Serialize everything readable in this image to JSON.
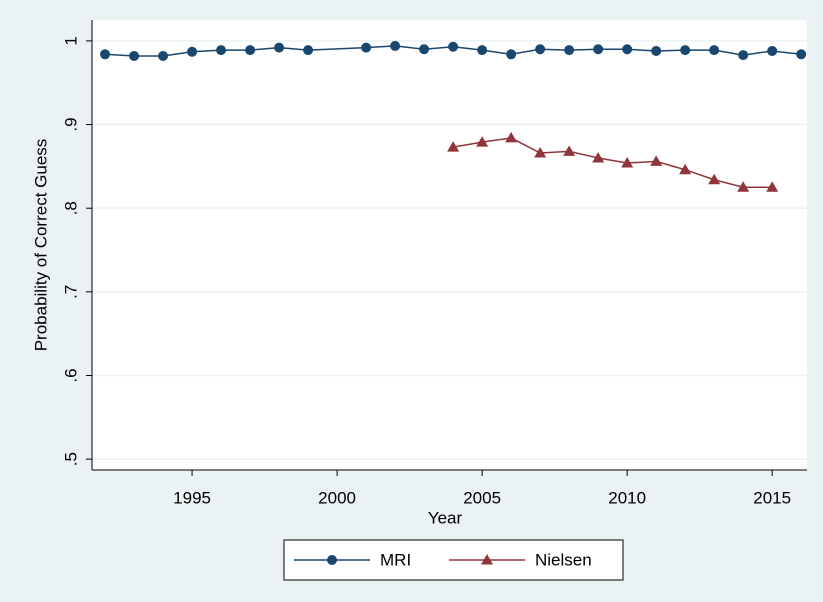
{
  "chart_data": {
    "type": "line",
    "x_label": "Year",
    "y_label": "Probability of Correct Guess",
    "series": [
      {
        "name": "MRI",
        "color": "#1a476f",
        "marker": "circle",
        "x": [
          1992,
          1993,
          1994,
          1995,
          1996,
          1997,
          1998,
          1999,
          2001,
          2002,
          2003,
          2004,
          2005,
          2006,
          2007,
          2008,
          2009,
          2010,
          2011,
          2012,
          2013,
          2014,
          2015,
          2016
        ],
        "values": [
          0.984,
          0.982,
          0.982,
          0.987,
          0.989,
          0.989,
          0.992,
          0.989,
          0.992,
          0.994,
          0.99,
          0.993,
          0.989,
          0.984,
          0.99,
          0.989,
          0.99,
          0.99,
          0.988,
          0.989,
          0.989,
          0.983,
          0.988,
          0.984
        ]
      },
      {
        "name": "Nielsen",
        "color": "#90353b",
        "marker": "triangle",
        "x": [
          2004,
          2005,
          2006,
          2007,
          2008,
          2009,
          2010,
          2011,
          2012,
          2013,
          2014,
          2015
        ],
        "values": [
          0.873,
          0.879,
          0.884,
          0.866,
          0.868,
          0.86,
          0.854,
          0.856,
          0.846,
          0.834,
          0.825,
          0.825
        ]
      }
    ],
    "xlim": [
      1991.55,
      2016.2
    ],
    "xticks": [
      1995,
      2000,
      2005,
      2010,
      2015
    ],
    "ylim": [
      0.487,
      1.025
    ],
    "yticks": [
      {
        "value": 0.5,
        "label": ".5"
      },
      {
        "value": 0.6,
        "label": ".6"
      },
      {
        "value": 0.7,
        "label": ".7"
      },
      {
        "value": 0.8,
        "label": ".8"
      },
      {
        "value": 0.9,
        "label": ".9"
      },
      1
    ],
    "grid": true,
    "legend": "bottom"
  }
}
